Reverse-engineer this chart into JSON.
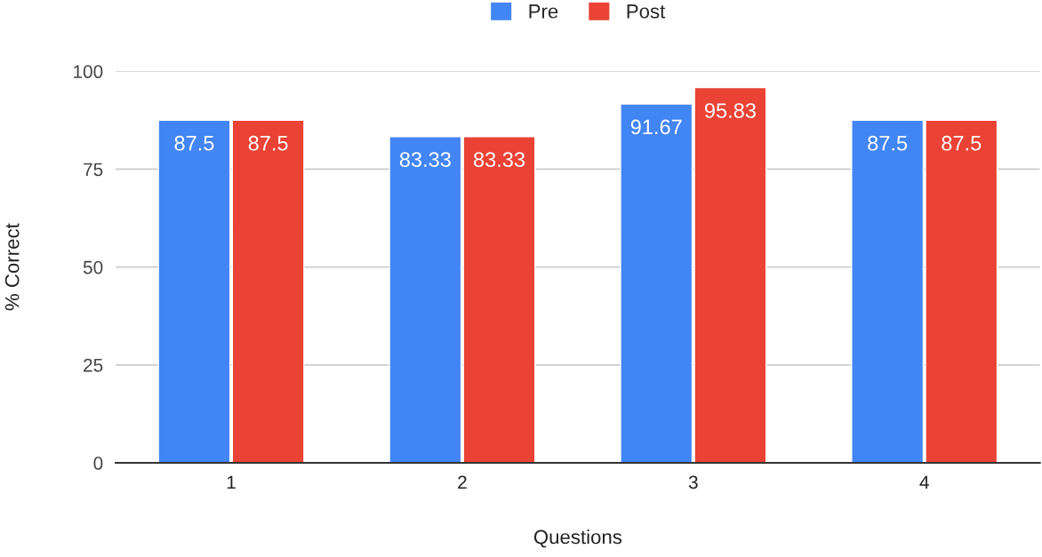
{
  "chart_data": {
    "type": "bar",
    "xlabel": "Questions",
    "ylabel": "% Correct",
    "categories": [
      "1",
      "2",
      "3",
      "4"
    ],
    "series": [
      {
        "name": "Pre",
        "color": "#4285f4",
        "values": [
          87.5,
          83.33,
          91.67,
          87.5
        ]
      },
      {
        "name": "Post",
        "color": "#ea4335",
        "values": [
          87.5,
          83.33,
          95.83,
          87.5
        ]
      }
    ],
    "ylim": [
      0,
      100
    ],
    "yticks": [
      0,
      25,
      50,
      75,
      100
    ],
    "grid": "y",
    "legend": "top",
    "data_labels": true
  }
}
